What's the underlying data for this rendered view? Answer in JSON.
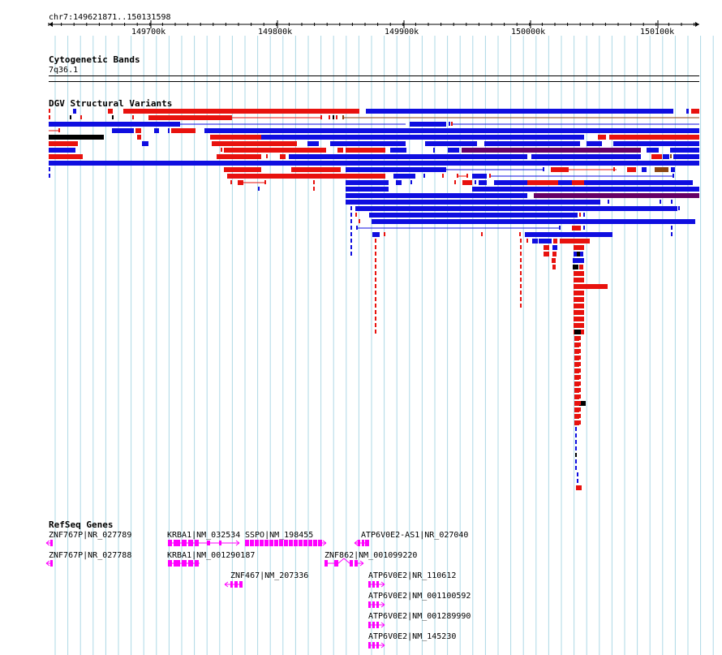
{
  "ruler": {
    "region": "chr7:149621871..150131598",
    "ticks": [
      "149700k",
      "149800k",
      "149900k",
      "150000k",
      "150100k"
    ]
  },
  "tracks": {
    "cytoband": {
      "title": "Cytogenetic Bands",
      "band": "7q36.1"
    },
    "dgv": {
      "title": "DGV Structural Variants"
    },
    "refseq": {
      "title": "RefSeq Genes"
    }
  },
  "genes": [
    {
      "label": "ZNF767P|NR_027789",
      "strand": "-"
    },
    {
      "label": "ZNF767P|NR_027788",
      "strand": "-"
    },
    {
      "label": "KRBA1|NM_032534",
      "strand": "+"
    },
    {
      "label": "KRBA1|NM_001290187",
      "strand": "+"
    },
    {
      "label": "SSPO|NM_198455",
      "strand": "+"
    },
    {
      "label": "ZNF467|NM_207336",
      "strand": "-"
    },
    {
      "label": "ZNF862|NM_001099220",
      "strand": "+"
    },
    {
      "label": "ATP6V0E2-AS1|NR_027040",
      "strand": "-"
    },
    {
      "label": "ATP6V0E2|NR_110612",
      "strand": "+"
    },
    {
      "label": "ATP6V0E2|NM_001100592",
      "strand": "+"
    },
    {
      "label": "ATP6V0E2|NM_001289990",
      "strand": "+"
    },
    {
      "label": "ATP6V0E2|NM_145230",
      "strand": "+"
    }
  ],
  "colors": {
    "gain": "#e8120e",
    "loss": "#0f0ee0",
    "gain_loss": "#660066",
    "complex": "#000000",
    "inversion": "#8b4513",
    "gene": "#ff00ff",
    "gridline": "#add8e6"
  }
}
